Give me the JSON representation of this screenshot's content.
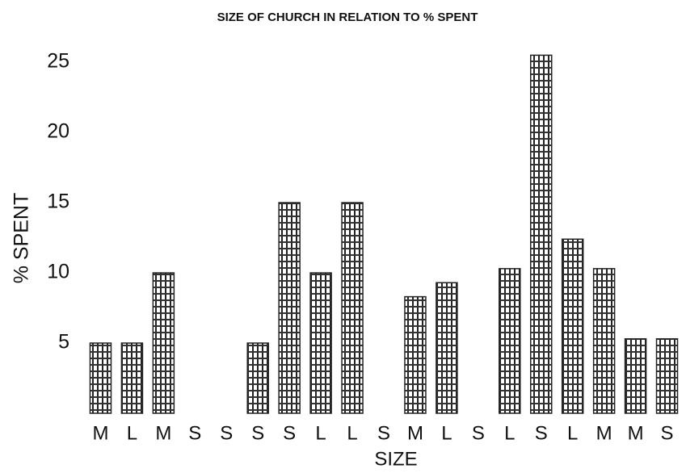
{
  "chart_data": {
    "type": "bar",
    "title": "SIZE OF CHURCH IN RELATION TO % SPENT",
    "x_label": "SIZE",
    "y_label": "% SPENT",
    "categories": [
      "M",
      "L",
      "M",
      "S",
      "S",
      "S",
      "S",
      "L",
      "L",
      "S",
      "M",
      "L",
      "S",
      "L",
      "S",
      "L",
      "M",
      "M",
      "S"
    ],
    "values": [
      5,
      5,
      10,
      0,
      0,
      5,
      15,
      10,
      15,
      0,
      8.3,
      9.3,
      0,
      10.3,
      25.5,
      12.4,
      10.3,
      5.3,
      5.3
    ],
    "color": "#222222",
    "ylim": [
      0,
      26.5
    ],
    "yticks": [
      5,
      10,
      15,
      20,
      25
    ],
    "grid": false
  }
}
